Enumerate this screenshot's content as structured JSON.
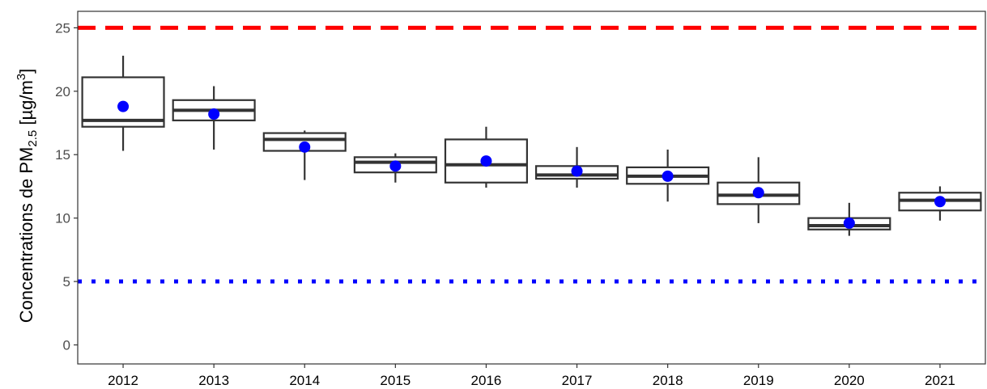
{
  "chart_data": {
    "type": "box",
    "ylabel": {
      "prefix": "Concentrations de PM",
      "subscript": "2.5",
      "unit_open": " [µg/m",
      "superscript": "3",
      "unit_close": "]"
    },
    "categories": [
      "2012",
      "2013",
      "2014",
      "2015",
      "2016",
      "2017",
      "2018",
      "2019",
      "2020",
      "2021"
    ],
    "ylim": [
      -1.5,
      26.3
    ],
    "yticks": [
      0,
      5,
      10,
      15,
      20,
      25
    ],
    "boxes": [
      {
        "category": "2012",
        "whisker_low": 15.3,
        "q1": 17.2,
        "median": 17.7,
        "q3": 21.1,
        "whisker_high": 22.8,
        "mean": 18.8
      },
      {
        "category": "2013",
        "whisker_low": 15.4,
        "q1": 17.7,
        "median": 18.5,
        "q3": 19.3,
        "whisker_high": 20.4,
        "mean": 18.2
      },
      {
        "category": "2014",
        "whisker_low": 13.0,
        "q1": 15.3,
        "median": 16.2,
        "q3": 16.7,
        "whisker_high": 16.9,
        "mean": 15.6
      },
      {
        "category": "2015",
        "whisker_low": 12.8,
        "q1": 13.6,
        "median": 14.4,
        "q3": 14.8,
        "whisker_high": 15.1,
        "mean": 14.1
      },
      {
        "category": "2016",
        "whisker_low": 12.4,
        "q1": 12.8,
        "median": 14.2,
        "q3": 16.2,
        "whisker_high": 17.2,
        "mean": 14.5
      },
      {
        "category": "2017",
        "whisker_low": 12.4,
        "q1": 13.1,
        "median": 13.4,
        "q3": 14.1,
        "whisker_high": 15.6,
        "mean": 13.7
      },
      {
        "category": "2018",
        "whisker_low": 11.3,
        "q1": 12.7,
        "median": 13.3,
        "q3": 14.0,
        "whisker_high": 15.4,
        "mean": 13.3
      },
      {
        "category": "2019",
        "whisker_low": 9.6,
        "q1": 11.1,
        "median": 11.8,
        "q3": 12.8,
        "whisker_high": 14.8,
        "mean": 12.0
      },
      {
        "category": "2020",
        "whisker_low": 8.6,
        "q1": 9.1,
        "median": 9.4,
        "q3": 10.0,
        "whisker_high": 11.2,
        "mean": 9.6
      },
      {
        "category": "2021",
        "whisker_low": 9.8,
        "q1": 10.6,
        "median": 11.4,
        "q3": 12.0,
        "whisker_high": 12.5,
        "mean": 11.3
      }
    ],
    "reference_lines": [
      {
        "y": 25,
        "color": "#ff0000",
        "style": "dashed"
      },
      {
        "y": 5,
        "color": "#0000ff",
        "style": "dotted"
      }
    ],
    "mean_color": "#0000ff",
    "box_color": "#333333",
    "grid": false
  }
}
